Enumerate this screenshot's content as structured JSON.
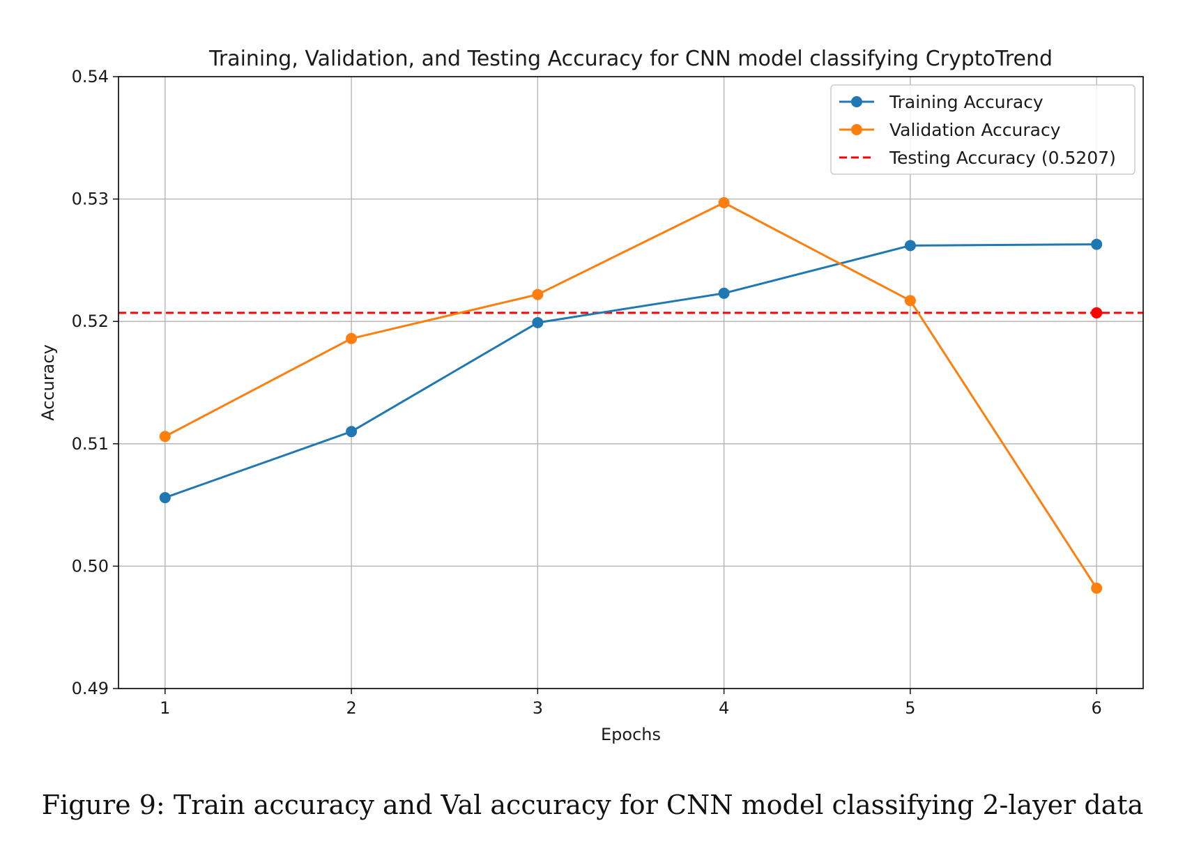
{
  "chart_data": {
    "type": "line",
    "title": "Training, Validation, and Testing Accuracy for CNN model classifying CryptoTrend",
    "xlabel": "Epochs",
    "ylabel": "Accuracy",
    "x": [
      1,
      2,
      3,
      4,
      5,
      6
    ],
    "x_tick_labels": [
      "1",
      "2",
      "3",
      "4",
      "5",
      "6"
    ],
    "xlim": [
      0.75,
      6.25
    ],
    "ylim": [
      0.49,
      0.54
    ],
    "y_ticks": [
      0.49,
      0.5,
      0.51,
      0.52,
      0.53,
      0.54
    ],
    "y_tick_labels": [
      "0.49",
      "0.50",
      "0.51",
      "0.52",
      "0.53",
      "0.54"
    ],
    "grid": true,
    "legend_position": "top-right",
    "series": [
      {
        "name": "Training Accuracy",
        "color": "#1f77b4",
        "style": "solid",
        "marker": "circle",
        "values": [
          0.5056,
          0.511,
          0.5199,
          0.5223,
          0.5262,
          0.5263
        ]
      },
      {
        "name": "Validation Accuracy",
        "color": "#ff7f0e",
        "style": "solid",
        "marker": "circle",
        "values": [
          0.5106,
          0.5186,
          0.5222,
          0.5297,
          0.5217,
          0.4982
        ]
      }
    ],
    "reference_line": {
      "name": "Testing Accuracy (0.5207)",
      "value": 0.5207,
      "color": "#ff0000",
      "style": "dashed",
      "marker_at_x": 6
    }
  },
  "caption": "Figure 9: Train accuracy and Val accuracy for CNN model classifying 2-layer data"
}
